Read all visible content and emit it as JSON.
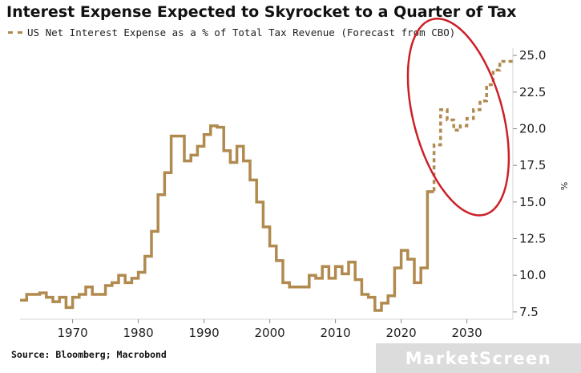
{
  "title": "Interest Expense Expected to Skyrocket to a Quarter of Tax",
  "legend": {
    "label": "US Net Interest Expense as a % of Total Tax Revenue (Forecast from CBO)"
  },
  "source": "Source: Bloomberg; Macrobond",
  "watermark": "MarketScreen",
  "colors": {
    "line": "#b08a4e",
    "ellipse": "#cc2028"
  },
  "chart_data": {
    "type": "line",
    "title": "Interest Expense Expected to Skyrocket to a Quarter of Tax",
    "ylabel": "%",
    "xlim": [
      1962,
      2037
    ],
    "ylim": [
      7.0,
      25.5
    ],
    "x_ticks": [
      1970,
      1980,
      1990,
      2000,
      2010,
      2020,
      2030
    ],
    "y_ticks": [
      7.5,
      10.0,
      12.5,
      15.0,
      17.5,
      20.0,
      22.5,
      25.0
    ],
    "x_tick_labels": [
      "1970",
      "1980",
      "1990",
      "2000",
      "2010",
      "2020",
      "2030"
    ],
    "y_tick_labels": [
      "7.5",
      "10.0",
      "12.5",
      "15.0",
      "17.5",
      "20.0",
      "22.5",
      "25.0"
    ],
    "legend_position": "top-left",
    "series": [
      {
        "name": "US Net Interest Expense as a % of Total Tax Revenue",
        "style": "solid-step",
        "x": [
          1962,
          1963,
          1964,
          1965,
          1966,
          1967,
          1968,
          1969,
          1970,
          1971,
          1972,
          1973,
          1974,
          1975,
          1976,
          1977,
          1978,
          1979,
          1980,
          1981,
          1982,
          1983,
          1984,
          1985,
          1986,
          1987,
          1988,
          1989,
          1990,
          1991,
          1992,
          1993,
          1994,
          1995,
          1996,
          1997,
          1998,
          1999,
          2000,
          2001,
          2002,
          2003,
          2004,
          2005,
          2006,
          2007,
          2008,
          2009,
          2010,
          2011,
          2012,
          2013,
          2014,
          2015,
          2016,
          2017,
          2018,
          2019,
          2020,
          2021,
          2022,
          2023,
          2024
        ],
        "values": [
          8.3,
          8.7,
          8.7,
          8.8,
          8.5,
          8.2,
          8.5,
          7.8,
          8.5,
          8.7,
          9.2,
          8.7,
          8.7,
          9.3,
          9.5,
          10.0,
          9.5,
          9.8,
          10.2,
          11.3,
          13.0,
          15.5,
          17.0,
          19.5,
          19.5,
          17.8,
          18.2,
          18.8,
          19.6,
          20.2,
          20.1,
          18.5,
          17.7,
          18.8,
          17.8,
          16.5,
          15.0,
          13.3,
          12.0,
          11.0,
          9.5,
          9.2,
          9.2,
          9.2,
          10.0,
          9.8,
          10.6,
          9.8,
          10.6,
          10.1,
          10.9,
          9.7,
          8.7,
          8.5,
          7.6,
          8.1,
          8.6,
          10.5,
          11.7,
          11.1,
          9.5,
          10.5,
          15.7
        ]
      },
      {
        "name": "CBO Forecast",
        "style": "dashed-step",
        "x": [
          2024,
          2025,
          2026,
          2027,
          2028,
          2029,
          2030,
          2031,
          2032,
          2033,
          2034,
          2035,
          2036
        ],
        "values": [
          15.7,
          18.9,
          21.3,
          20.6,
          19.9,
          20.2,
          20.7,
          21.3,
          21.9,
          23.0,
          24.0,
          24.6,
          24.6
        ]
      }
    ],
    "annotations": [
      {
        "type": "ellipse",
        "label": "forecast highlight",
        "center_x": 2028.7,
        "center_y": 20.8,
        "radius_x_years": 6.8,
        "radius_y_pct": 6.9,
        "rotation_deg": -15
      }
    ]
  }
}
